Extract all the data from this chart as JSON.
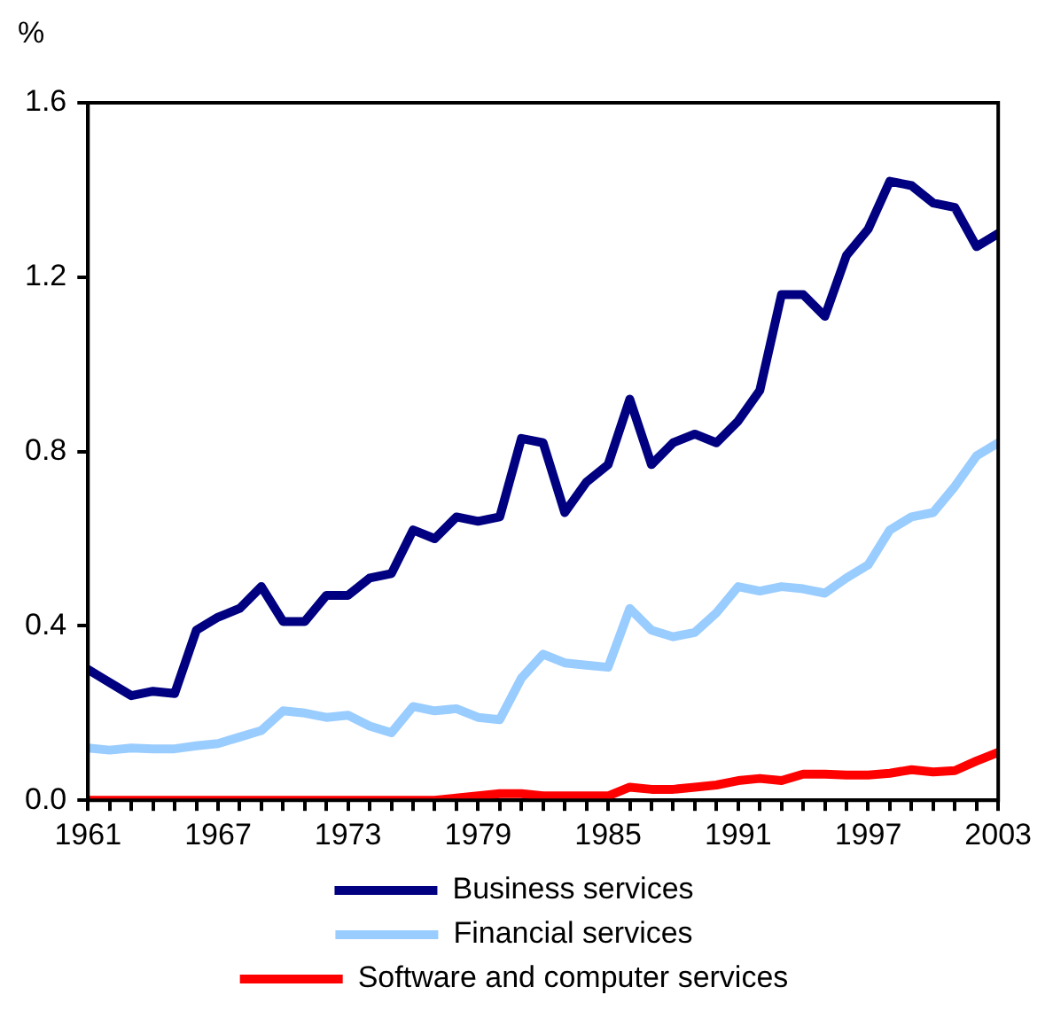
{
  "chart_data": {
    "type": "line",
    "ylabel": "%",
    "legend": "bottom",
    "marker": "none",
    "line_style": "solid",
    "x": [
      1961,
      1962,
      1963,
      1964,
      1965,
      1966,
      1967,
      1968,
      1969,
      1970,
      1971,
      1972,
      1973,
      1974,
      1975,
      1976,
      1977,
      1978,
      1979,
      1980,
      1981,
      1982,
      1983,
      1984,
      1985,
      1986,
      1987,
      1988,
      1989,
      1990,
      1991,
      1992,
      1993,
      1994,
      1995,
      1996,
      1997,
      1998,
      1999,
      2000,
      2001,
      2002,
      2003
    ],
    "xlim": [
      1961,
      2003
    ],
    "xticks": [
      1961,
      {
        "value": 1962,
        "label": null
      },
      {
        "value": 1963,
        "label": null
      },
      {
        "value": 1964,
        "label": null
      },
      {
        "value": 1965,
        "label": null
      },
      {
        "value": 1966,
        "label": null
      },
      1967,
      {
        "value": 1968,
        "label": null
      },
      {
        "value": 1969,
        "label": null
      },
      {
        "value": 1970,
        "label": null
      },
      {
        "value": 1971,
        "label": null
      },
      {
        "value": 1972,
        "label": null
      },
      1973,
      {
        "value": 1974,
        "label": null
      },
      {
        "value": 1975,
        "label": null
      },
      {
        "value": 1976,
        "label": null
      },
      {
        "value": 1977,
        "label": null
      },
      {
        "value": 1978,
        "label": null
      },
      1979,
      {
        "value": 1980,
        "label": null
      },
      {
        "value": 1981,
        "label": null
      },
      {
        "value": 1982,
        "label": null
      },
      {
        "value": 1983,
        "label": null
      },
      {
        "value": 1984,
        "label": null
      },
      1985,
      {
        "value": 1986,
        "label": null
      },
      {
        "value": 1987,
        "label": null
      },
      {
        "value": 1988,
        "label": null
      },
      {
        "value": 1989,
        "label": null
      },
      {
        "value": 1990,
        "label": null
      },
      1991,
      {
        "value": 1992,
        "label": null
      },
      {
        "value": 1993,
        "label": null
      },
      {
        "value": 1994,
        "label": null
      },
      {
        "value": 1995,
        "label": null
      },
      {
        "value": 1996,
        "label": null
      },
      1997,
      {
        "value": 1998,
        "label": null
      },
      {
        "value": 1999,
        "label": null
      },
      {
        "value": 2000,
        "label": null
      },
      {
        "value": 2001,
        "label": null
      },
      {
        "value": 2002,
        "label": null
      },
      2003
    ],
    "ylim": [
      0,
      1.6
    ],
    "yticks": [
      {
        "value": 0,
        "label": "0.0"
      },
      {
        "value": 0.4,
        "label": "0.4"
      },
      {
        "value": 0.8,
        "label": "0.8"
      },
      {
        "value": 1.2,
        "label": "1.2"
      },
      {
        "value": 1.6,
        "label": "1.6"
      }
    ],
    "series": [
      {
        "name": "Business services",
        "color": "#000080",
        "values": [
          0.3,
          0.27,
          0.24,
          0.25,
          0.245,
          0.39,
          0.42,
          0.44,
          0.49,
          0.41,
          0.41,
          0.47,
          0.47,
          0.51,
          0.52,
          0.62,
          0.6,
          0.65,
          0.64,
          0.65,
          0.83,
          0.82,
          0.66,
          0.73,
          0.77,
          0.92,
          0.77,
          0.82,
          0.84,
          0.82,
          0.87,
          0.94,
          1.16,
          1.16,
          1.11,
          1.25,
          1.31,
          1.42,
          1.41,
          1.37,
          1.36,
          1.27,
          1.3
        ]
      },
      {
        "name": "Financial services",
        "color": "#99ccff",
        "values": [
          0.12,
          0.115,
          0.12,
          0.118,
          0.118,
          0.125,
          0.13,
          0.145,
          0.16,
          0.205,
          0.2,
          0.19,
          0.195,
          0.17,
          0.155,
          0.215,
          0.205,
          0.21,
          0.19,
          0.185,
          0.28,
          0.335,
          0.315,
          0.31,
          0.305,
          0.44,
          0.39,
          0.375,
          0.385,
          0.43,
          0.49,
          0.48,
          0.49,
          0.485,
          0.475,
          0.51,
          0.54,
          0.62,
          0.65,
          0.66,
          0.72,
          0.79,
          0.82
        ]
      },
      {
        "name": "Software and computer services",
        "color": "#ff0000",
        "values": [
          0,
          0,
          0,
          0,
          0,
          0,
          0,
          0,
          0,
          0,
          0,
          0,
          0,
          0,
          0,
          0,
          0,
          0.005,
          0.01,
          0.015,
          0.015,
          0.01,
          0.01,
          0.01,
          0.01,
          0.03,
          0.025,
          0.025,
          0.03,
          0.035,
          0.045,
          0.05,
          0.045,
          0.06,
          0.06,
          0.058,
          0.058,
          0.062,
          0.07,
          0.065,
          0.068,
          0.09,
          0.11
        ]
      }
    ]
  }
}
